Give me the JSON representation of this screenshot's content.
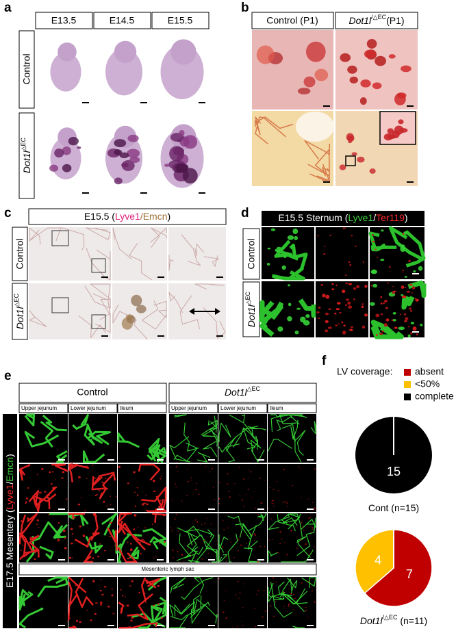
{
  "figure": {
    "a": {
      "label": "a",
      "columns": [
        "E13.5",
        "E14.5",
        "E15.5"
      ],
      "rows": [
        {
          "text": "Control"
        },
        {
          "gene": "Dot1l",
          "superscript": "△EC"
        }
      ]
    },
    "b": {
      "label": "b",
      "columns": [
        {
          "text": "Control (P1)"
        },
        {
          "gene": "Dot1l",
          "superscript": "/△EC",
          "suffix": "(P1)"
        }
      ]
    },
    "c": {
      "label": "c",
      "header": {
        "prefix": "E15.5 (",
        "marker1": "Lyve1",
        "separator": "/",
        "marker2": "Emcn",
        "suffix": ")"
      },
      "rows": [
        {
          "text": "Control"
        },
        {
          "gene": "Dot1l",
          "superscript": "△EC"
        }
      ]
    },
    "d": {
      "label": "d",
      "header": {
        "prefix": "E15.5 Sternum (",
        "marker1": "Lyve1",
        "separator": "/",
        "marker2": "Ter119",
        "suffix": ")"
      },
      "rows": [
        {
          "text": "Control"
        },
        {
          "gene": "Dot1l",
          "superscript": "△EC"
        }
      ]
    },
    "e": {
      "label": "e",
      "groups": [
        {
          "text": "Control"
        },
        {
          "gene": "Dot1l",
          "superscript": "△EC"
        }
      ],
      "subheaders": [
        "Upper jejunum",
        "Lower jejunum",
        "Ileum",
        "Upper jejunum",
        "Lower jejunum",
        "Ileum"
      ],
      "side": {
        "prefix": "E17.5 Mesentery (",
        "marker1": "Lyve1",
        "separator": "/",
        "marker2": "Emcn",
        "suffix": ")"
      },
      "lymph_sac": "Mesenteric lymph sac"
    },
    "f": {
      "label": "f"
    }
  },
  "chart_data": {
    "type": "pie",
    "legend_title": "LV coverage:",
    "categories": [
      "absent",
      "<50%",
      "complete"
    ],
    "colors": [
      "#c00000",
      "#ffc000",
      "#000000"
    ],
    "pies": [
      {
        "caption": {
          "text": "Cont (n=15)"
        },
        "values": [
          0,
          0,
          15
        ]
      },
      {
        "caption": {
          "gene": "Dot1l",
          "superscript": "/△EC",
          "suffix": " (n=11)"
        },
        "values": [
          7,
          4,
          0
        ]
      }
    ]
  }
}
